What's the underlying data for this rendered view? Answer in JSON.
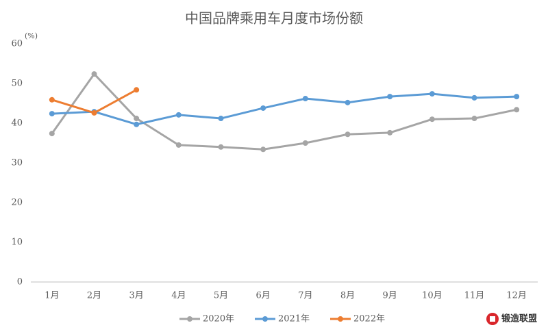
{
  "chart_data": {
    "type": "line",
    "title": "中国品牌乘用车月度市场份额",
    "y_unit": "(%)",
    "categories": [
      "1月",
      "2月",
      "3月",
      "4月",
      "5月",
      "6月",
      "7月",
      "8月",
      "9月",
      "10月",
      "11月",
      "12月"
    ],
    "series": [
      {
        "name": "2020年",
        "color": "#a5a5a5",
        "values": [
          37.4,
          52.4,
          41.2,
          34.5,
          34.0,
          33.4,
          35.0,
          37.2,
          37.6,
          41.0,
          41.2,
          43.4
        ]
      },
      {
        "name": "2021年",
        "color": "#5b9bd5",
        "values": [
          42.4,
          42.9,
          39.7,
          42.1,
          41.2,
          43.8,
          46.2,
          45.2,
          46.7,
          47.4,
          46.4,
          46.7
        ]
      },
      {
        "name": "2022年",
        "color": "#ed7d31",
        "values": [
          45.9,
          42.6,
          48.4,
          null,
          null,
          null,
          null,
          null,
          null,
          null,
          null,
          null
        ]
      }
    ],
    "ylim": [
      0,
      60
    ],
    "yticks": [
      0,
      10,
      20,
      30,
      40,
      50,
      60
    ],
    "grid": false,
    "legend": "bottom",
    "watermark": "锻造联盟"
  }
}
